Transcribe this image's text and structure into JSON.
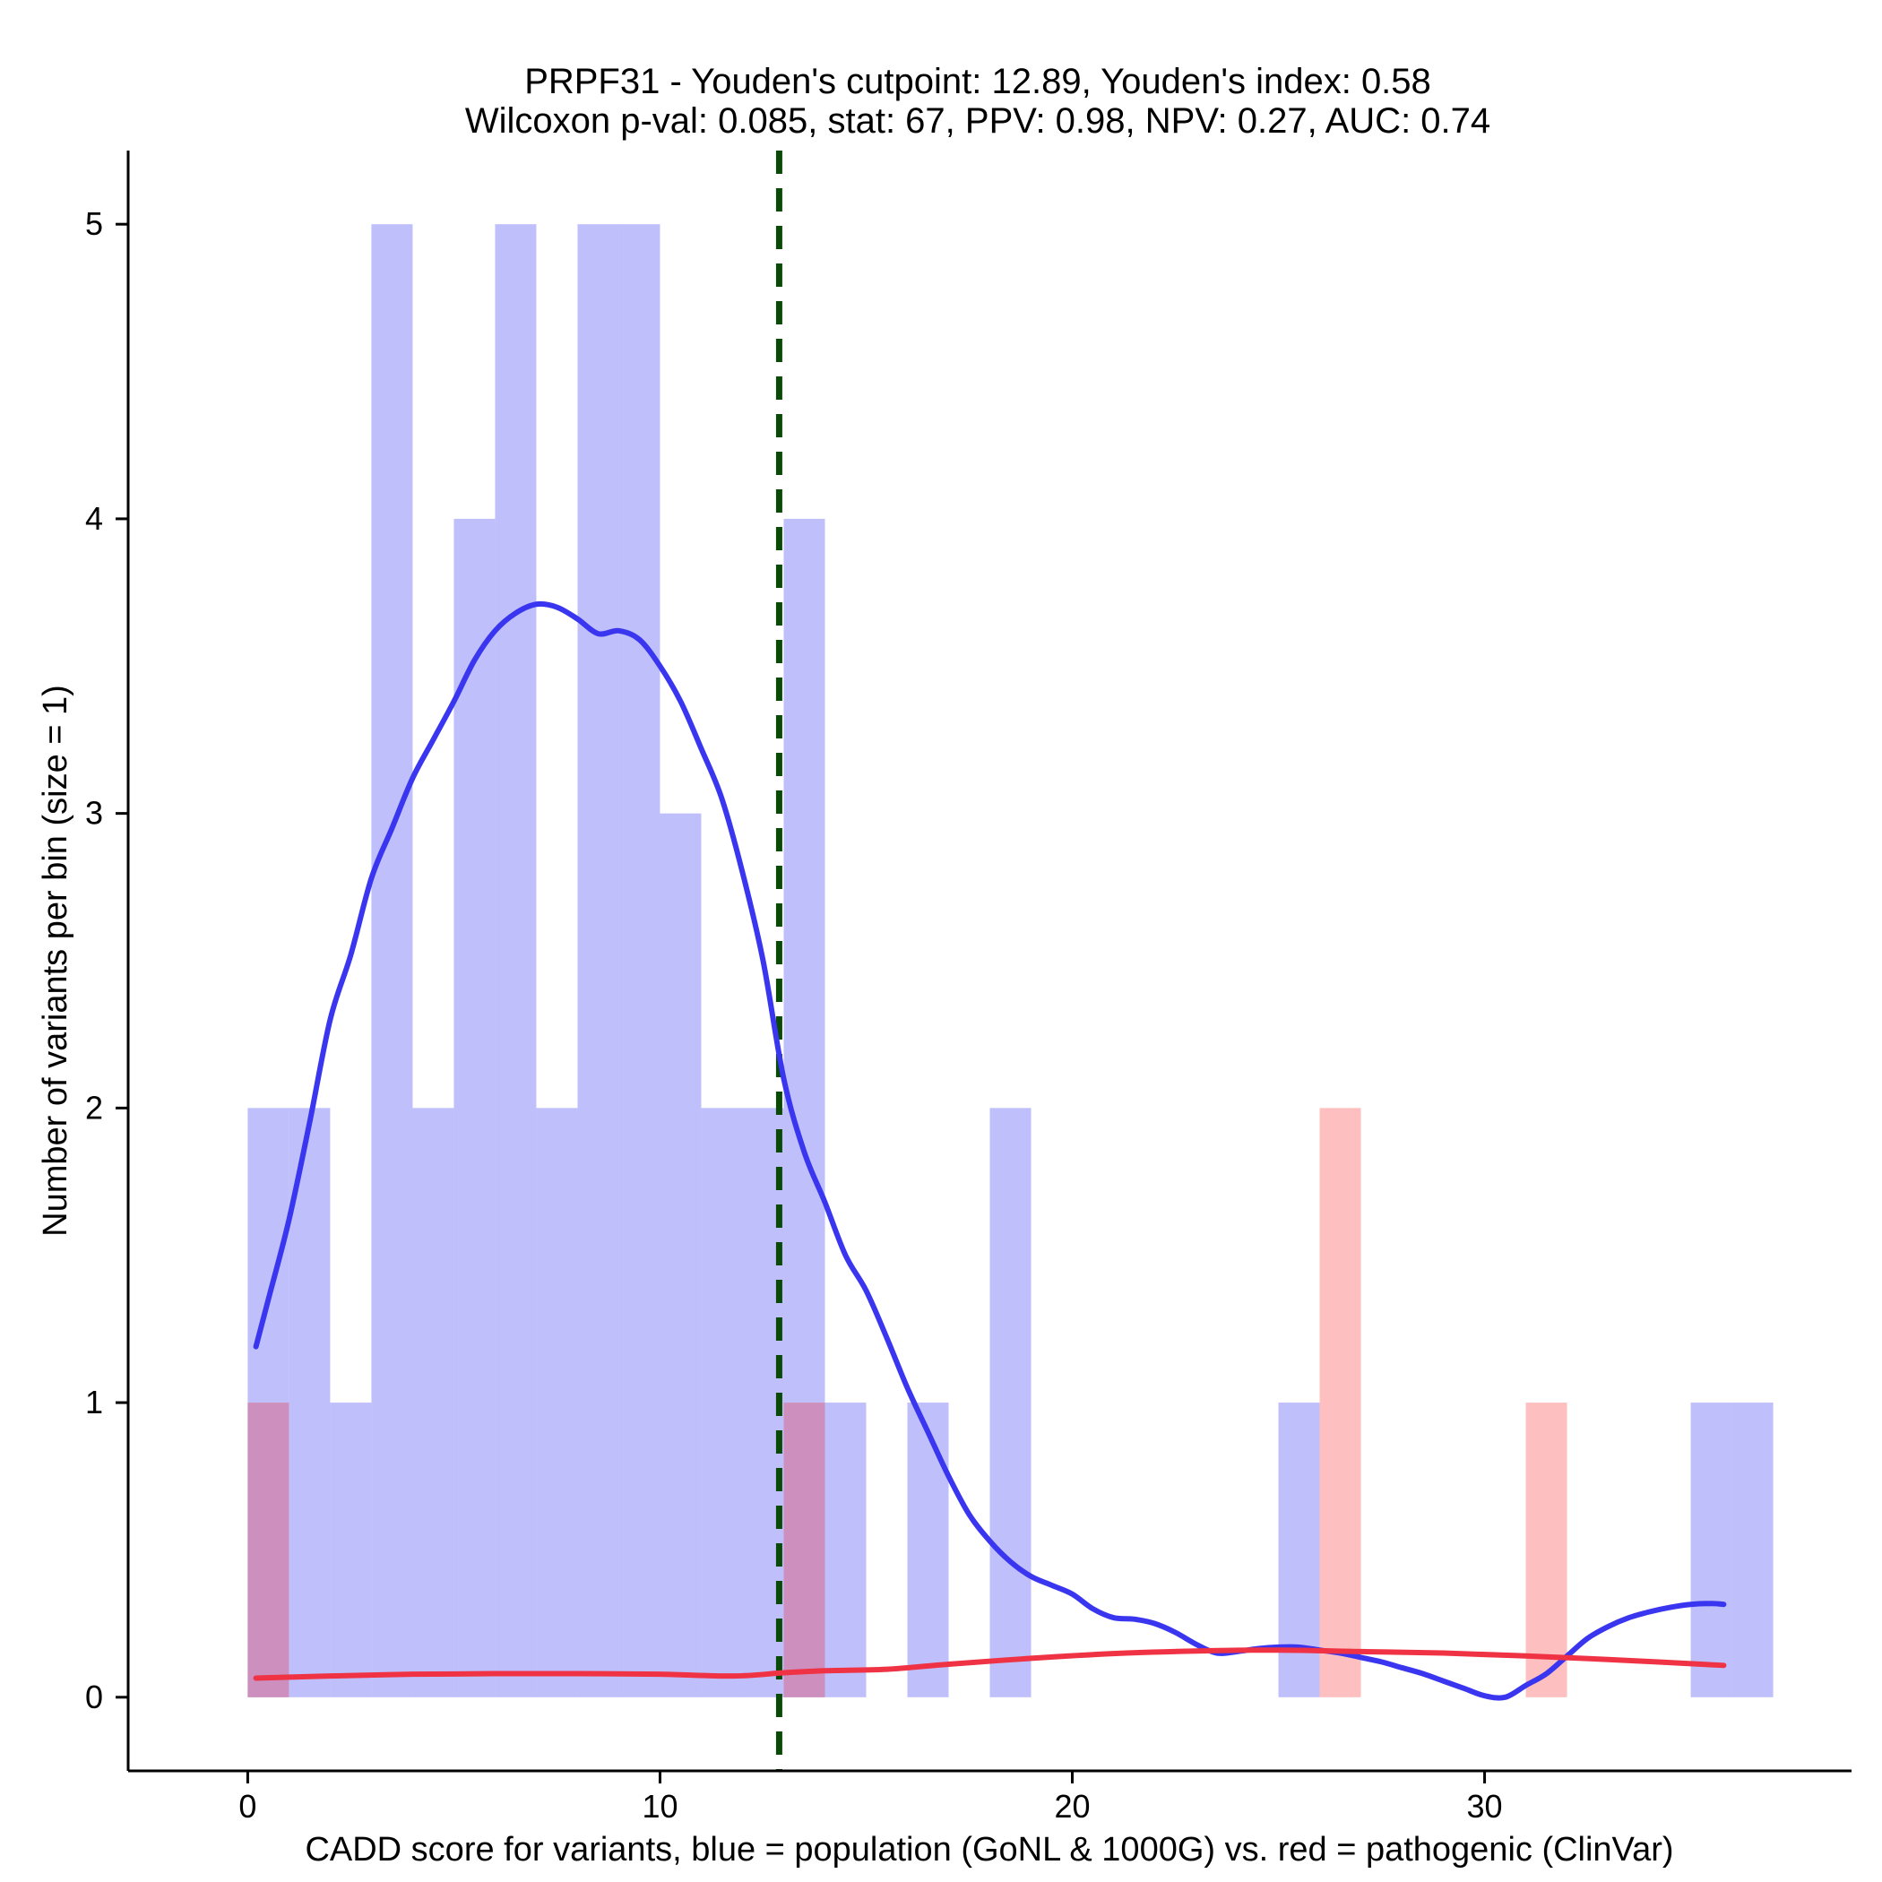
{
  "chart_data": {
    "type": "bar",
    "title_lines": [
      "PRPF31 - Youden's cutpoint: 12.89, Youden's index: 0.58",
      "Wilcoxon p-val: 0.085, stat: 67, PPV: 0.98, NPV: 0.27, AUC: 0.74"
    ],
    "xlabel": "CADD score for variants, blue = population (GoNL & 1000G) vs. red = pathogenic (ClinVar)",
    "ylabel": "Number of variants per bin (size = 1)",
    "xlim": [
      -2.9,
      38.9
    ],
    "ylim": [
      -0.25,
      5.25
    ],
    "x_ticks": [
      0,
      10,
      20,
      30
    ],
    "y_ticks": [
      0,
      1,
      2,
      3,
      4,
      5
    ],
    "bin_width": 1,
    "cutpoint": 12.89,
    "series": [
      {
        "name": "population (GoNL & 1000G)",
        "color": "#bfbffb",
        "bins": [
          {
            "x": 0,
            "count": 2
          },
          {
            "x": 1,
            "count": 2
          },
          {
            "x": 2,
            "count": 1
          },
          {
            "x": 3,
            "count": 5
          },
          {
            "x": 4,
            "count": 2
          },
          {
            "x": 5,
            "count": 4
          },
          {
            "x": 6,
            "count": 5
          },
          {
            "x": 7,
            "count": 2
          },
          {
            "x": 8,
            "count": 5
          },
          {
            "x": 9,
            "count": 5
          },
          {
            "x": 10,
            "count": 3
          },
          {
            "x": 11,
            "count": 2
          },
          {
            "x": 12,
            "count": 2
          },
          {
            "x": 13,
            "count": 4
          },
          {
            "x": 14,
            "count": 1
          },
          {
            "x": 16,
            "count": 1
          },
          {
            "x": 18,
            "count": 2
          },
          {
            "x": 25,
            "count": 1
          },
          {
            "x": 35,
            "count": 1
          },
          {
            "x": 36,
            "count": 1
          }
        ]
      },
      {
        "name": "pathogenic (ClinVar)",
        "color": "#fdbfbf",
        "bins": [
          {
            "x": 0,
            "count": 1
          },
          {
            "x": 13,
            "count": 1
          },
          {
            "x": 26,
            "count": 2
          },
          {
            "x": 31,
            "count": 1
          }
        ]
      }
    ],
    "overlap_color": "#cc8fbe",
    "density_curves": [
      {
        "name": "population density (scaled)",
        "color": "#3a36f0",
        "points": [
          [
            0.2,
            1.19
          ],
          [
            0.5,
            1.35
          ],
          [
            1.0,
            1.62
          ],
          [
            1.5,
            1.95
          ],
          [
            2.0,
            2.3
          ],
          [
            2.5,
            2.52
          ],
          [
            3.0,
            2.78
          ],
          [
            3.5,
            2.95
          ],
          [
            4.0,
            3.12
          ],
          [
            4.5,
            3.25
          ],
          [
            5.0,
            3.38
          ],
          [
            5.5,
            3.52
          ],
          [
            6.0,
            3.62
          ],
          [
            6.5,
            3.68
          ],
          [
            7.0,
            3.71
          ],
          [
            7.5,
            3.7
          ],
          [
            8.0,
            3.66
          ],
          [
            8.5,
            3.61
          ],
          [
            9.0,
            3.62
          ],
          [
            9.5,
            3.59
          ],
          [
            10.0,
            3.5
          ],
          [
            10.5,
            3.38
          ],
          [
            11.0,
            3.22
          ],
          [
            11.5,
            3.05
          ],
          [
            12.0,
            2.8
          ],
          [
            12.5,
            2.5
          ],
          [
            13.0,
            2.1
          ],
          [
            13.5,
            1.85
          ],
          [
            14.0,
            1.68
          ],
          [
            14.5,
            1.5
          ],
          [
            15.0,
            1.38
          ],
          [
            15.5,
            1.22
          ],
          [
            16.0,
            1.05
          ],
          [
            16.5,
            0.9
          ],
          [
            17.0,
            0.75
          ],
          [
            17.5,
            0.62
          ],
          [
            18.0,
            0.53
          ],
          [
            18.5,
            0.46
          ],
          [
            19.0,
            0.41
          ],
          [
            19.5,
            0.38
          ],
          [
            20.0,
            0.35
          ],
          [
            20.5,
            0.3
          ],
          [
            21.0,
            0.27
          ],
          [
            21.5,
            0.265
          ],
          [
            22.0,
            0.25
          ],
          [
            22.5,
            0.22
          ],
          [
            23.0,
            0.18
          ],
          [
            23.5,
            0.15
          ],
          [
            24.0,
            0.155
          ],
          [
            24.5,
            0.165
          ],
          [
            25.0,
            0.17
          ],
          [
            25.5,
            0.17
          ],
          [
            26.0,
            0.16
          ],
          [
            26.5,
            0.15
          ],
          [
            27.0,
            0.135
          ],
          [
            27.5,
            0.12
          ],
          [
            28.0,
            0.1
          ],
          [
            28.5,
            0.08
          ],
          [
            29.0,
            0.055
          ],
          [
            29.5,
            0.03
          ],
          [
            30.0,
            0.005
          ],
          [
            30.5,
            0.0
          ],
          [
            31.0,
            0.04
          ],
          [
            31.5,
            0.08
          ],
          [
            32.0,
            0.14
          ],
          [
            32.5,
            0.2
          ],
          [
            33.0,
            0.24
          ],
          [
            33.5,
            0.27
          ],
          [
            34.0,
            0.29
          ],
          [
            34.5,
            0.305
          ],
          [
            35.0,
            0.315
          ],
          [
            35.5,
            0.318
          ],
          [
            35.8,
            0.315
          ]
        ]
      },
      {
        "name": "pathogenic density (scaled)",
        "color": "#ef3345",
        "points": [
          [
            0.2,
            0.065
          ],
          [
            2.0,
            0.072
          ],
          [
            4.0,
            0.078
          ],
          [
            6.0,
            0.08
          ],
          [
            8.0,
            0.08
          ],
          [
            10.0,
            0.078
          ],
          [
            11.8,
            0.072
          ],
          [
            13.0,
            0.083
          ],
          [
            14.0,
            0.09
          ],
          [
            15.5,
            0.095
          ],
          [
            17.0,
            0.112
          ],
          [
            19.0,
            0.132
          ],
          [
            21.0,
            0.148
          ],
          [
            23.0,
            0.157
          ],
          [
            25.0,
            0.16
          ],
          [
            27.0,
            0.155
          ],
          [
            29.0,
            0.15
          ],
          [
            31.0,
            0.14
          ],
          [
            33.0,
            0.128
          ],
          [
            35.8,
            0.108
          ]
        ]
      }
    ]
  }
}
